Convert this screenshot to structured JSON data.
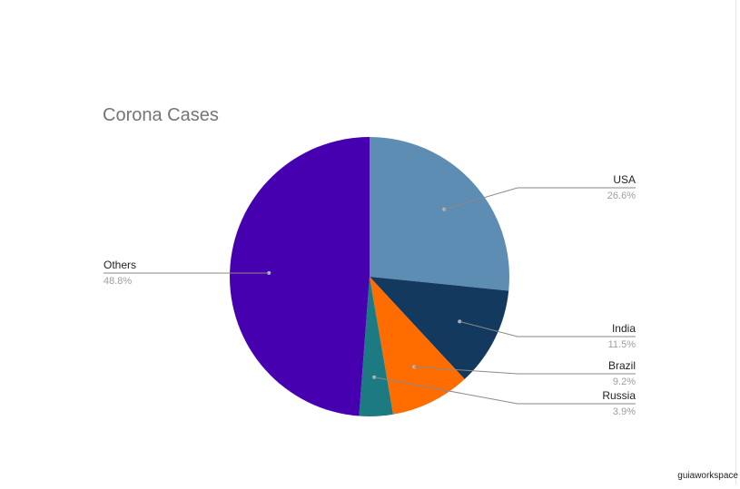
{
  "chart_data": {
    "type": "pie",
    "title": "Corona Cases",
    "slices": [
      {
        "label": "USA",
        "value": 26.6,
        "percent_label": "26.6%",
        "color": "#5e8db3"
      },
      {
        "label": "India",
        "value": 11.5,
        "percent_label": "11.5%",
        "color": "#133a5e"
      },
      {
        "label": "Brazil",
        "value": 9.2,
        "percent_label": "9.2%",
        "color": "#ff6d01"
      },
      {
        "label": "Russia",
        "value": 3.9,
        "percent_label": "3.9%",
        "color": "#1c7a82"
      },
      {
        "label": "Others",
        "value": 48.8,
        "percent_label": "48.8%",
        "color": "#4700b0"
      }
    ],
    "legend": "none",
    "start_angle": "12 o'clock, clockwise"
  },
  "watermark": "guiaworkspace"
}
